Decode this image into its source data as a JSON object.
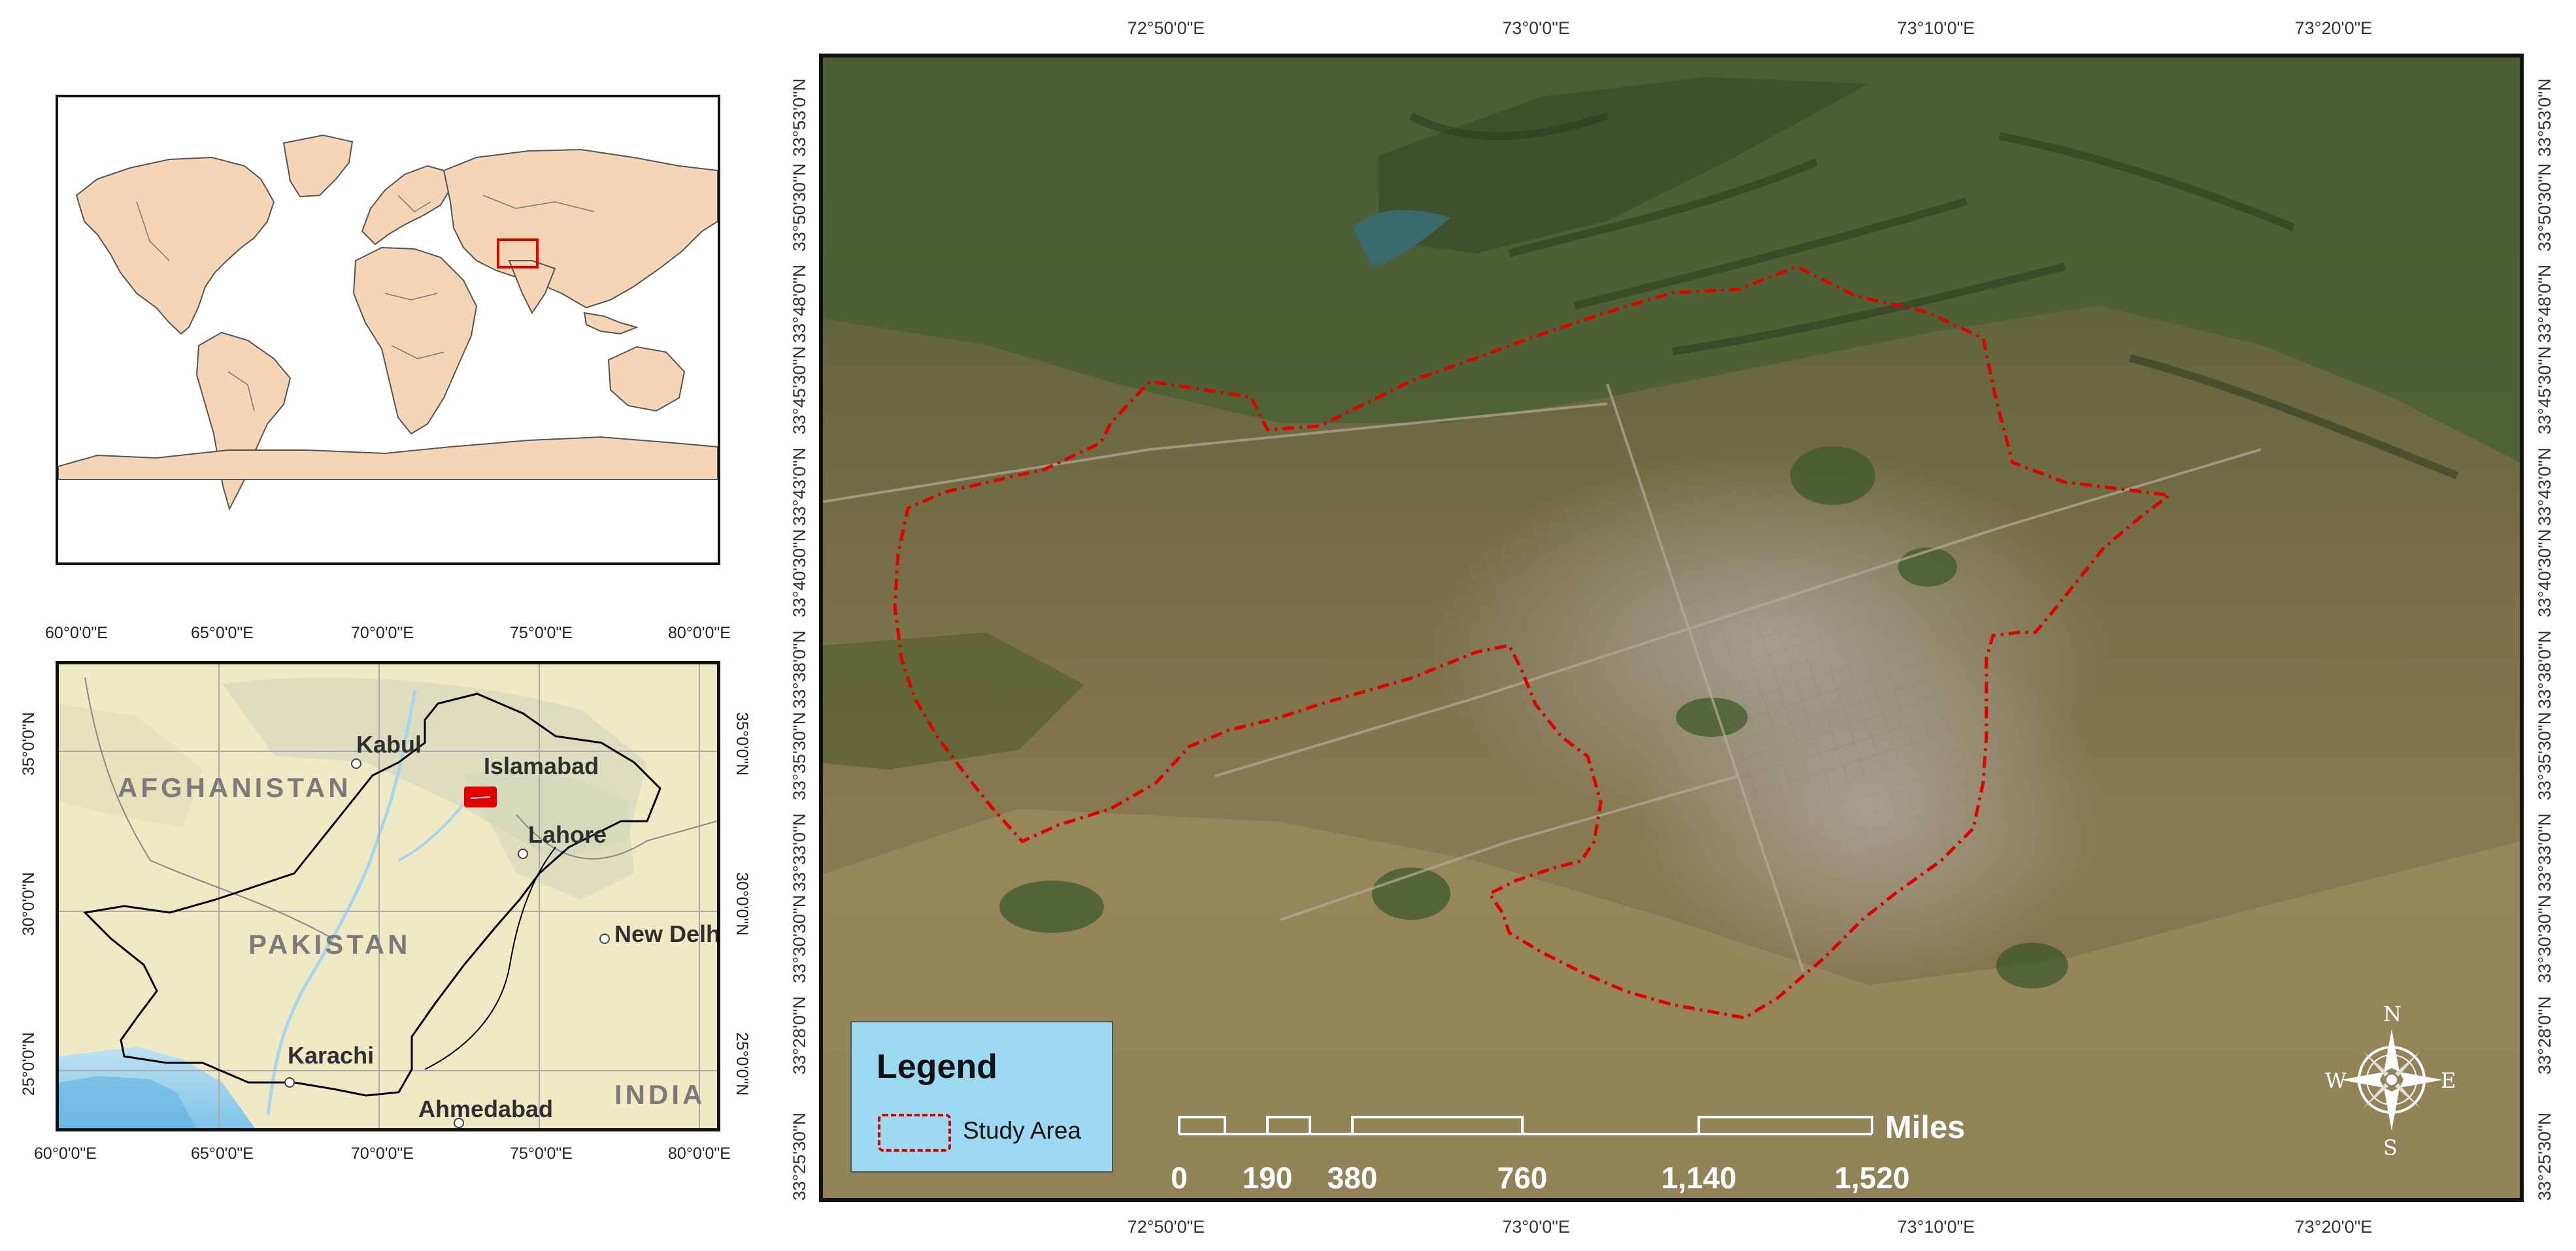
{
  "world_map": {
    "land_color": "#f4d5b5",
    "border_color": "#555555",
    "highlight_color": "#e00000"
  },
  "regional_map": {
    "top_ticks": [
      "60°0'0\"E",
      "65°0'0\"E",
      "70°0'0\"E",
      "75°0'0\"E",
      "80°0'0\"E"
    ],
    "bottom_ticks": [
      "60°0'0\"E",
      "65°0'0\"E",
      "70°0'0\"E",
      "75°0'0\"E",
      "80°0'0\"E"
    ],
    "left_ticks": [
      "35°0'0\"N",
      "30°0'0\"N",
      "25°0'0\"N"
    ],
    "right_ticks": [
      "35°0'0\"N",
      "30°0'0\"N",
      "25°0'0\"N"
    ],
    "country_labels": [
      "AFGHANISTAN",
      "PAKISTAN",
      "INDIA"
    ],
    "city_labels": [
      "Kabul",
      "Islamabad",
      "Lahore",
      "New Delhi",
      "Karachi",
      "Ahmedabad"
    ],
    "study_area_color": "#e00000"
  },
  "main_map": {
    "top_ticks": [
      "72°50'0\"E",
      "73°0'0\"E",
      "73°10'0\"E",
      "73°20'0\"E"
    ],
    "bottom_ticks": [
      "72°50'0\"E",
      "73°0'0\"E",
      "73°10'0\"E",
      "73°20'0\"E"
    ],
    "left_ticks": [
      "33°53'0\"N",
      "33°50'30\"N",
      "33°48'0\"N",
      "33°45'30\"N",
      "33°43'0\"N",
      "33°40'30\"N",
      "33°38'0\"N",
      "33°35'30\"N",
      "33°33'0\"N",
      "33°30'30\"N",
      "33°28'0\"N",
      "33°25'30\"N"
    ],
    "right_ticks": [
      "33°53'0\"N",
      "33°50'30\"N",
      "33°48'0\"N",
      "33°45'30\"N",
      "33°43'0\"N",
      "33°40'30\"N",
      "33°38'0\"N",
      "33°35'30\"N",
      "33°33'0\"N",
      "33°30'30\"N",
      "33°28'0\"N",
      "33°25'30\"N"
    ],
    "study_area_color": "#e00000",
    "legend": {
      "title": "Legend",
      "item_label": "Study Area"
    },
    "scale_bar": {
      "unit": "Miles",
      "labels": [
        "0",
        "190",
        "380",
        "760",
        "1,140",
        "1,520"
      ]
    },
    "compass": {
      "north": "N",
      "south": "S",
      "east": "E",
      "west": "W"
    }
  }
}
